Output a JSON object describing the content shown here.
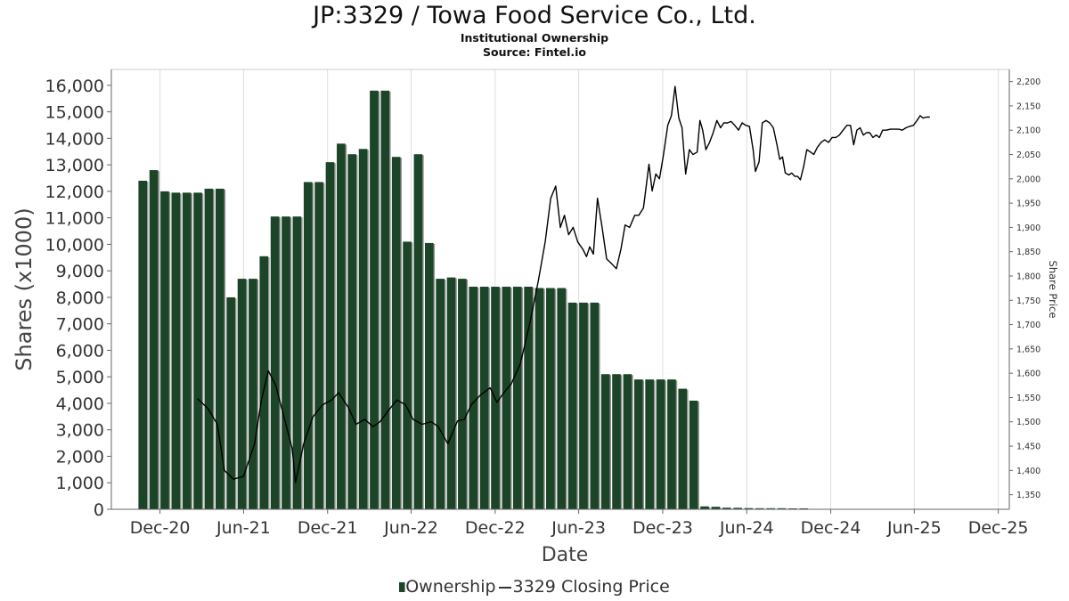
{
  "chart_data": {
    "type": "bar",
    "title": "JP:3329 / Towa Food Service Co., Ltd.",
    "subtitle": "Institutional Ownership",
    "source": "Source: Fintel.io",
    "xlabel": "Date",
    "ylabel": "Shares (x1000)",
    "y2label": "Share Price",
    "ylim": [
      0,
      16600
    ],
    "y2lim": [
      1320,
      2225
    ],
    "yticks": [
      "0",
      "1,000",
      "2,000",
      "3,000",
      "4,000",
      "5,000",
      "6,000",
      "7,000",
      "8,000",
      "9,000",
      "10,000",
      "11,000",
      "12,000",
      "13,000",
      "14,000",
      "15,000",
      "16,000"
    ],
    "y2ticks": [
      "1,350",
      "1,400",
      "1,450",
      "1,500",
      "1,550",
      "1,600",
      "1,650",
      "1,700",
      "1,750",
      "1,800",
      "1,850",
      "1,900",
      "1,950",
      "2,000",
      "2,050",
      "2,100",
      "2,150",
      "2,200"
    ],
    "xlim": [
      "2020-08-17",
      "2025-12-25"
    ],
    "xticks": [
      {
        "label": "Dec-20",
        "date": "2020-12-01"
      },
      {
        "label": "Jun-21",
        "date": "2021-06-01"
      },
      {
        "label": "Dec-21",
        "date": "2021-12-01"
      },
      {
        "label": "Jun-22",
        "date": "2022-06-01"
      },
      {
        "label": "Dec-22",
        "date": "2022-12-01"
      },
      {
        "label": "Jun-23",
        "date": "2023-06-01"
      },
      {
        "label": "Dec-23",
        "date": "2023-12-01"
      },
      {
        "label": "Jun-24",
        "date": "2024-06-01"
      },
      {
        "label": "Dec-24",
        "date": "2024-12-01"
      },
      {
        "label": "Jun-25",
        "date": "2025-06-01"
      },
      {
        "label": "Dec-25",
        "date": "2025-12-01"
      }
    ],
    "legend": "bottom-center",
    "colors": {
      "ownership": "#1c4428",
      "ownership_shadow": "#8f958f",
      "price": "#000000",
      "axis": "#666666"
    },
    "series": [
      {
        "name": "Ownership",
        "type": "bar",
        "points": [
          [
            "2020-10-15",
            12400
          ],
          [
            "2020-11-08",
            12800
          ],
          [
            "2020-12-02",
            12000
          ],
          [
            "2020-12-26",
            11950
          ],
          [
            "2021-01-19",
            11950
          ],
          [
            "2021-02-12",
            11950
          ],
          [
            "2021-03-08",
            12100
          ],
          [
            "2021-04-01",
            12100
          ],
          [
            "2021-04-25",
            8000
          ],
          [
            "2021-05-19",
            8700
          ],
          [
            "2021-06-12",
            8700
          ],
          [
            "2021-07-06",
            9550
          ],
          [
            "2021-07-30",
            11050
          ],
          [
            "2021-08-23",
            11050
          ],
          [
            "2021-09-16",
            11050
          ],
          [
            "2021-10-10",
            12350
          ],
          [
            "2021-11-03",
            12350
          ],
          [
            "2021-11-27",
            13100
          ],
          [
            "2021-12-21",
            13800
          ],
          [
            "2022-01-14",
            13400
          ],
          [
            "2022-02-07",
            13600
          ],
          [
            "2022-03-03",
            15800
          ],
          [
            "2022-03-27",
            15800
          ],
          [
            "2022-04-20",
            13300
          ],
          [
            "2022-05-14",
            10100
          ],
          [
            "2022-06-07",
            13400
          ],
          [
            "2022-07-01",
            10050
          ],
          [
            "2022-07-25",
            8700
          ],
          [
            "2022-08-18",
            8750
          ],
          [
            "2022-09-11",
            8700
          ],
          [
            "2022-10-05",
            8400
          ],
          [
            "2022-10-29",
            8400
          ],
          [
            "2022-11-22",
            8400
          ],
          [
            "2022-12-16",
            8400
          ],
          [
            "2023-01-09",
            8400
          ],
          [
            "2023-02-02",
            8400
          ],
          [
            "2023-02-26",
            8350
          ],
          [
            "2023-03-22",
            8350
          ],
          [
            "2023-04-15",
            8350
          ],
          [
            "2023-05-09",
            7800
          ],
          [
            "2023-06-02",
            7800
          ],
          [
            "2023-06-26",
            7800
          ],
          [
            "2023-07-20",
            5100
          ],
          [
            "2023-08-13",
            5100
          ],
          [
            "2023-09-06",
            5100
          ],
          [
            "2023-09-30",
            4900
          ],
          [
            "2023-10-24",
            4900
          ],
          [
            "2023-11-17",
            4900
          ],
          [
            "2023-12-11",
            4900
          ],
          [
            "2024-01-04",
            4550
          ],
          [
            "2024-01-28",
            4100
          ],
          [
            "2024-02-21",
            110
          ],
          [
            "2024-03-16",
            95
          ],
          [
            "2024-04-09",
            60
          ],
          [
            "2024-05-03",
            55
          ],
          [
            "2024-05-27",
            45
          ],
          [
            "2024-06-20",
            40
          ],
          [
            "2024-07-14",
            40
          ],
          [
            "2024-08-07",
            40
          ],
          [
            "2024-08-31",
            35
          ],
          [
            "2024-09-24",
            35
          ]
        ]
      },
      {
        "name": "3329 Closing Price",
        "type": "line",
        "points": [
          [
            "2021-02-20",
            1548
          ],
          [
            "2021-03-15",
            1528
          ],
          [
            "2021-04-05",
            1495
          ],
          [
            "2021-04-20",
            1400
          ],
          [
            "2021-05-10",
            1382
          ],
          [
            "2021-06-01",
            1388
          ],
          [
            "2021-06-25",
            1455
          ],
          [
            "2021-07-10",
            1545
          ],
          [
            "2021-07-25",
            1605
          ],
          [
            "2021-08-10",
            1575
          ],
          [
            "2021-08-28",
            1510
          ],
          [
            "2021-09-15",
            1445
          ],
          [
            "2021-09-22",
            1375
          ],
          [
            "2021-10-10",
            1455
          ],
          [
            "2021-10-30",
            1510
          ],
          [
            "2021-11-20",
            1535
          ],
          [
            "2021-12-10",
            1545
          ],
          [
            "2021-12-25",
            1560
          ],
          [
            "2022-01-15",
            1530
          ],
          [
            "2022-02-01",
            1495
          ],
          [
            "2022-02-20",
            1505
          ],
          [
            "2022-03-10",
            1490
          ],
          [
            "2022-03-25",
            1500
          ],
          [
            "2022-04-10",
            1520
          ],
          [
            "2022-05-01",
            1545
          ],
          [
            "2022-05-20",
            1535
          ],
          [
            "2022-06-05",
            1505
          ],
          [
            "2022-06-25",
            1495
          ],
          [
            "2022-07-15",
            1500
          ],
          [
            "2022-07-30",
            1490
          ],
          [
            "2022-08-20",
            1455
          ],
          [
            "2022-09-10",
            1502
          ],
          [
            "2022-09-25",
            1505
          ],
          [
            "2022-10-10",
            1535
          ],
          [
            "2022-10-30",
            1555
          ],
          [
            "2022-11-20",
            1570
          ],
          [
            "2022-12-05",
            1540
          ],
          [
            "2022-12-20",
            1560
          ],
          [
            "2023-01-05",
            1578
          ],
          [
            "2023-01-25",
            1620
          ],
          [
            "2023-02-15",
            1705
          ],
          [
            "2023-03-05",
            1790
          ],
          [
            "2023-03-20",
            1870
          ],
          [
            "2023-04-01",
            1960
          ],
          [
            "2023-04-12",
            1985
          ],
          [
            "2023-04-22",
            1900
          ],
          [
            "2023-05-01",
            1925
          ],
          [
            "2023-05-10",
            1885
          ],
          [
            "2023-05-20",
            1900
          ],
          [
            "2023-05-30",
            1870
          ],
          [
            "2023-06-10",
            1855
          ],
          [
            "2023-06-18",
            1840
          ],
          [
            "2023-06-25",
            1860
          ],
          [
            "2023-07-03",
            1845
          ],
          [
            "2023-07-12",
            1960
          ],
          [
            "2023-07-22",
            1900
          ],
          [
            "2023-08-01",
            1835
          ],
          [
            "2023-08-12",
            1825
          ],
          [
            "2023-08-22",
            1815
          ],
          [
            "2023-09-01",
            1855
          ],
          [
            "2023-09-10",
            1905
          ],
          [
            "2023-09-20",
            1900
          ],
          [
            "2023-10-01",
            1925
          ],
          [
            "2023-10-10",
            1925
          ],
          [
            "2023-10-20",
            1940
          ],
          [
            "2023-11-01",
            2030
          ],
          [
            "2023-11-08",
            1975
          ],
          [
            "2023-11-16",
            2010
          ],
          [
            "2023-11-24",
            2000
          ],
          [
            "2023-12-02",
            2045
          ],
          [
            "2023-12-12",
            2110
          ],
          [
            "2023-12-20",
            2130
          ],
          [
            "2023-12-28",
            2190
          ],
          [
            "2024-01-05",
            2125
          ],
          [
            "2024-01-12",
            2105
          ],
          [
            "2024-01-20",
            2010
          ],
          [
            "2024-01-28",
            2060
          ],
          [
            "2024-02-05",
            2050
          ],
          [
            "2024-02-14",
            2055
          ],
          [
            "2024-02-20",
            2120
          ],
          [
            "2024-02-26",
            2100
          ],
          [
            "2024-03-04",
            2060
          ],
          [
            "2024-03-12",
            2075
          ],
          [
            "2024-03-20",
            2095
          ],
          [
            "2024-03-28",
            2120
          ],
          [
            "2024-04-05",
            2105
          ],
          [
            "2024-04-12",
            2115
          ],
          [
            "2024-04-20",
            2115
          ],
          [
            "2024-04-28",
            2118
          ],
          [
            "2024-05-06",
            2110
          ],
          [
            "2024-05-14",
            2100
          ],
          [
            "2024-05-22",
            2115
          ],
          [
            "2024-05-30",
            2110
          ],
          [
            "2024-06-07",
            2108
          ],
          [
            "2024-06-15",
            2060
          ],
          [
            "2024-06-20",
            2015
          ],
          [
            "2024-06-28",
            2035
          ],
          [
            "2024-07-05",
            2115
          ],
          [
            "2024-07-13",
            2120
          ],
          [
            "2024-07-21",
            2115
          ],
          [
            "2024-07-29",
            2105
          ],
          [
            "2024-08-06",
            2070
          ],
          [
            "2024-08-12",
            2040
          ],
          [
            "2024-08-18",
            2045
          ],
          [
            "2024-08-24",
            2012
          ],
          [
            "2024-09-01",
            2008
          ],
          [
            "2024-09-07",
            2012
          ],
          [
            "2024-09-14",
            2005
          ],
          [
            "2024-09-20",
            2005
          ],
          [
            "2024-09-26",
            1998
          ],
          [
            "2024-10-03",
            2025
          ],
          [
            "2024-10-10",
            2060
          ],
          [
            "2024-10-18",
            2055
          ],
          [
            "2024-10-25",
            2050
          ],
          [
            "2024-11-02",
            2065
          ],
          [
            "2024-11-10",
            2075
          ],
          [
            "2024-11-18",
            2080
          ],
          [
            "2024-11-26",
            2075
          ],
          [
            "2024-12-04",
            2085
          ],
          [
            "2024-12-12",
            2085
          ],
          [
            "2024-12-20",
            2090
          ],
          [
            "2024-12-28",
            2100
          ],
          [
            "2025-01-05",
            2110
          ],
          [
            "2025-01-13",
            2110
          ],
          [
            "2025-01-20",
            2070
          ],
          [
            "2025-01-27",
            2100
          ],
          [
            "2025-02-03",
            2105
          ],
          [
            "2025-02-10",
            2090
          ],
          [
            "2025-02-17",
            2095
          ],
          [
            "2025-02-24",
            2095
          ],
          [
            "2025-03-03",
            2085
          ],
          [
            "2025-03-10",
            2090
          ],
          [
            "2025-03-17",
            2085
          ],
          [
            "2025-03-24",
            2100
          ],
          [
            "2025-04-01",
            2100
          ],
          [
            "2025-04-10",
            2102
          ],
          [
            "2025-04-20",
            2102
          ],
          [
            "2025-04-28",
            2102
          ],
          [
            "2025-05-06",
            2100
          ],
          [
            "2025-05-14",
            2105
          ],
          [
            "2025-05-22",
            2108
          ],
          [
            "2025-05-30",
            2110
          ],
          [
            "2025-06-07",
            2120
          ],
          [
            "2025-06-14",
            2130
          ],
          [
            "2025-06-20",
            2125
          ],
          [
            "2025-06-28",
            2127
          ],
          [
            "2025-07-05",
            2127
          ]
        ]
      }
    ]
  }
}
